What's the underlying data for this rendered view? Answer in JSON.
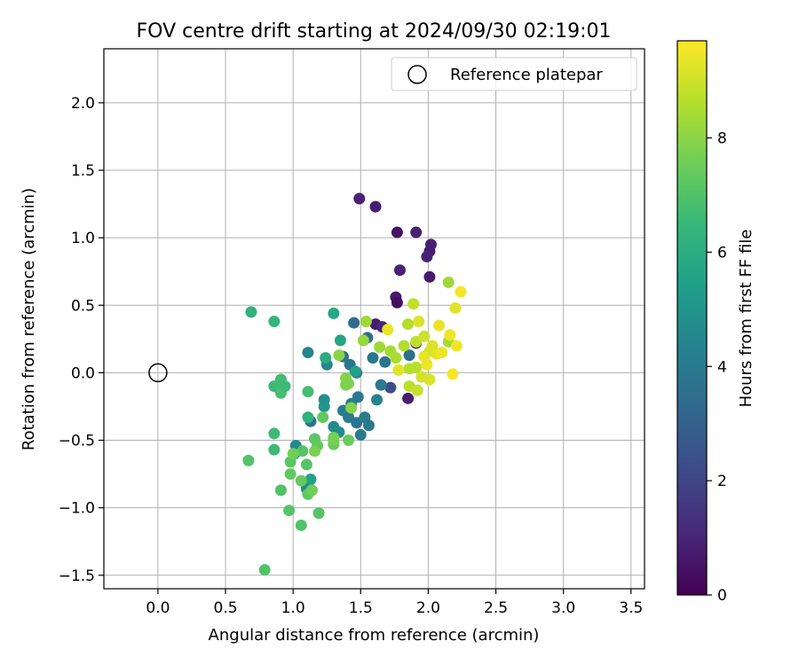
{
  "chart_data": {
    "type": "scatter",
    "title": "FOV centre drift starting at 2024/09/30 02:19:01",
    "xlabel": "Angular distance from reference (arcmin)",
    "ylabel": "Rotation from reference (arcmin)",
    "xlim": [
      -0.4,
      3.6
    ],
    "ylim": [
      -1.6,
      2.4
    ],
    "xticks": [
      0.0,
      0.5,
      1.0,
      1.5,
      2.0,
      2.5,
      3.0,
      3.5
    ],
    "xtick_labels": [
      "0.0",
      "0.5",
      "1.0",
      "1.5",
      "2.0",
      "2.5",
      "3.0",
      "3.5"
    ],
    "yticks": [
      -1.5,
      -1.0,
      -0.5,
      0.0,
      0.5,
      1.0,
      1.5,
      2.0
    ],
    "ytick_labels": [
      "−1.5",
      "−1.0",
      "−0.5",
      "0.0",
      "0.5",
      "1.0",
      "1.5",
      "2.0"
    ],
    "grid": true,
    "legend": {
      "location": "upper right",
      "entries": [
        "Reference platepar"
      ]
    },
    "reference_point": {
      "label": "Reference platepar",
      "x": 0.0,
      "y": 0.0,
      "marker": "open-circle"
    },
    "colorbar": {
      "label": "Hours from first FF file",
      "colormap": "viridis",
      "range": [
        0,
        9.7
      ],
      "ticks": [
        0,
        2,
        4,
        6,
        8
      ],
      "tick_labels": [
        "0",
        "2",
        "4",
        "6",
        "8"
      ]
    },
    "series": [
      {
        "name": "FOV centre",
        "points": [
          {
            "x": 1.49,
            "y": 1.29,
            "h": 0.9
          },
          {
            "x": 1.61,
            "y": 1.23,
            "h": 0.8
          },
          {
            "x": 1.77,
            "y": 1.04,
            "h": 0.5
          },
          {
            "x": 1.91,
            "y": 1.04,
            "h": 0.9
          },
          {
            "x": 2.02,
            "y": 0.95,
            "h": 0.9
          },
          {
            "x": 2.01,
            "y": 0.9,
            "h": 0.8
          },
          {
            "x": 1.99,
            "y": 0.86,
            "h": 0.9
          },
          {
            "x": 1.79,
            "y": 0.76,
            "h": 0.9
          },
          {
            "x": 2.01,
            "y": 0.71,
            "h": 0.7
          },
          {
            "x": 1.76,
            "y": 0.56,
            "h": 0.6
          },
          {
            "x": 1.77,
            "y": 0.52,
            "h": 0.4
          },
          {
            "x": 1.61,
            "y": 0.36,
            "h": 0.8
          },
          {
            "x": 1.66,
            "y": 0.34,
            "h": 1.0
          },
          {
            "x": 1.85,
            "y": -0.19,
            "h": 0.8
          },
          {
            "x": 1.91,
            "y": 0.22,
            "h": 1.2
          },
          {
            "x": 1.72,
            "y": -0.11,
            "h": 2.3
          },
          {
            "x": 1.86,
            "y": 0.13,
            "h": 3.6
          },
          {
            "x": 1.45,
            "y": 0.37,
            "h": 3.4
          },
          {
            "x": 1.55,
            "y": 0.26,
            "h": 3.5
          },
          {
            "x": 1.37,
            "y": 0.12,
            "h": 3.6
          },
          {
            "x": 1.42,
            "y": 0.06,
            "h": 3.7
          },
          {
            "x": 1.47,
            "y": 0.0,
            "h": 3.8
          },
          {
            "x": 1.59,
            "y": 0.11,
            "h": 3.9
          },
          {
            "x": 1.68,
            "y": 0.08,
            "h": 3.7
          },
          {
            "x": 1.65,
            "y": -0.09,
            "h": 4.0
          },
          {
            "x": 1.62,
            "y": -0.2,
            "h": 4.3
          },
          {
            "x": 1.48,
            "y": -0.18,
            "h": 3.9
          },
          {
            "x": 1.43,
            "y": -0.23,
            "h": 4.1
          },
          {
            "x": 1.37,
            "y": -0.28,
            "h": 4.2
          },
          {
            "x": 1.41,
            "y": -0.33,
            "h": 4.0
          },
          {
            "x": 1.47,
            "y": -0.37,
            "h": 3.8
          },
          {
            "x": 1.53,
            "y": -0.33,
            "h": 4.1
          },
          {
            "x": 1.56,
            "y": -0.39,
            "h": 4.0
          },
          {
            "x": 1.5,
            "y": -0.46,
            "h": 4.0
          },
          {
            "x": 1.3,
            "y": -0.4,
            "h": 4.6
          },
          {
            "x": 1.34,
            "y": -0.44,
            "h": 4.7
          },
          {
            "x": 1.25,
            "y": 0.06,
            "h": 4.5
          },
          {
            "x": 1.23,
            "y": -0.2,
            "h": 4.8
          },
          {
            "x": 1.23,
            "y": -0.25,
            "h": 5.0
          },
          {
            "x": 1.11,
            "y": 0.15,
            "h": 4.4
          },
          {
            "x": 1.13,
            "y": -0.36,
            "h": 3.6
          },
          {
            "x": 1.11,
            "y": -0.33,
            "h": 6.3
          },
          {
            "x": 1.02,
            "y": -0.54,
            "h": 4.6
          },
          {
            "x": 1.01,
            "y": -0.6,
            "h": 5.0
          },
          {
            "x": 1.1,
            "y": -0.86,
            "h": 4.8
          },
          {
            "x": 1.13,
            "y": -0.79,
            "h": 5.5
          },
          {
            "x": 1.35,
            "y": 0.24,
            "h": 5.7
          },
          {
            "x": 1.3,
            "y": 0.44,
            "h": 5.8
          },
          {
            "x": 1.24,
            "y": 0.11,
            "h": 6.0
          },
          {
            "x": 1.46,
            "y": 0.01,
            "h": 5.5
          },
          {
            "x": 0.86,
            "y": -0.57,
            "h": 6.6
          },
          {
            "x": 0.86,
            "y": -0.45,
            "h": 6.6
          },
          {
            "x": 0.69,
            "y": 0.45,
            "h": 6.2
          },
          {
            "x": 0.86,
            "y": 0.38,
            "h": 6.4
          },
          {
            "x": 0.86,
            "y": -0.1,
            "h": 6.6
          },
          {
            "x": 0.91,
            "y": -0.05,
            "h": 6.7
          },
          {
            "x": 0.91,
            "y": -0.15,
            "h": 6.8
          },
          {
            "x": 0.94,
            "y": -0.1,
            "h": 6.6
          },
          {
            "x": 0.91,
            "y": -0.87,
            "h": 7.0
          },
          {
            "x": 0.67,
            "y": -0.65,
            "h": 7.0
          },
          {
            "x": 0.79,
            "y": -1.46,
            "h": 7.0
          },
          {
            "x": 0.97,
            "y": -1.02,
            "h": 7.1
          },
          {
            "x": 1.06,
            "y": -1.13,
            "h": 7.0
          },
          {
            "x": 1.19,
            "y": -1.04,
            "h": 7.1
          },
          {
            "x": 1.11,
            "y": -0.14,
            "h": 6.8
          },
          {
            "x": 1.16,
            "y": -0.49,
            "h": 7.2
          },
          {
            "x": 1.18,
            "y": -0.54,
            "h": 7.3
          },
          {
            "x": 1.22,
            "y": -0.33,
            "h": 7.3
          },
          {
            "x": 1.3,
            "y": -0.48,
            "h": 7.6
          },
          {
            "x": 1.3,
            "y": -0.53,
            "h": 7.4
          },
          {
            "x": 1.3,
            "y": -0.5,
            "h": 7.7
          },
          {
            "x": 1.39,
            "y": -0.09,
            "h": 7.8
          },
          {
            "x": 1.39,
            "y": -0.04,
            "h": 7.9
          },
          {
            "x": 1.41,
            "y": -0.08,
            "h": 7.8
          },
          {
            "x": 1.43,
            "y": -0.26,
            "h": 7.9
          },
          {
            "x": 1.41,
            "y": -0.5,
            "h": 7.5
          },
          {
            "x": 1.07,
            "y": -0.58,
            "h": 7.1
          },
          {
            "x": 1.1,
            "y": -0.68,
            "h": 7.1
          },
          {
            "x": 0.98,
            "y": -0.66,
            "h": 7.2
          },
          {
            "x": 0.98,
            "y": -0.75,
            "h": 7.3
          },
          {
            "x": 1.11,
            "y": -0.9,
            "h": 7.3
          },
          {
            "x": 1.14,
            "y": -0.87,
            "h": 7.6
          },
          {
            "x": 1.06,
            "y": -0.8,
            "h": 7.4
          },
          {
            "x": 1.0,
            "y": -0.6,
            "h": 7.6
          },
          {
            "x": 1.16,
            "y": -0.58,
            "h": 7.7
          },
          {
            "x": 1.34,
            "y": 0.13,
            "h": 8.0
          },
          {
            "x": 1.52,
            "y": 0.24,
            "h": 8.2
          },
          {
            "x": 1.54,
            "y": 0.38,
            "h": 8.3
          },
          {
            "x": 1.64,
            "y": 0.19,
            "h": 8.3
          },
          {
            "x": 1.72,
            "y": 0.16,
            "h": 8.4
          },
          {
            "x": 1.76,
            "y": 0.11,
            "h": 8.5
          },
          {
            "x": 1.82,
            "y": 0.2,
            "h": 8.6
          },
          {
            "x": 1.85,
            "y": 0.36,
            "h": 8.6
          },
          {
            "x": 1.89,
            "y": 0.51,
            "h": 8.8
          },
          {
            "x": 1.91,
            "y": 0.23,
            "h": 8.8
          },
          {
            "x": 1.86,
            "y": 0.03,
            "h": 8.6
          },
          {
            "x": 1.91,
            "y": 0.04,
            "h": 8.7
          },
          {
            "x": 1.86,
            "y": -0.1,
            "h": 8.7
          },
          {
            "x": 1.92,
            "y": -0.13,
            "h": 8.9
          },
          {
            "x": 2.15,
            "y": 0.67,
            "h": 8.3
          },
          {
            "x": 2.15,
            "y": 0.23,
            "h": 8.4
          },
          {
            "x": 1.97,
            "y": 0.27,
            "h": 9.0
          },
          {
            "x": 2.01,
            "y": 0.16,
            "h": 9.1
          },
          {
            "x": 2.03,
            "y": 0.2,
            "h": 9.2
          },
          {
            "x": 2.06,
            "y": 0.14,
            "h": 9.3
          },
          {
            "x": 2.08,
            "y": 0.35,
            "h": 9.4
          },
          {
            "x": 2.1,
            "y": 0.15,
            "h": 9.5
          },
          {
            "x": 2.16,
            "y": 0.28,
            "h": 9.5
          },
          {
            "x": 2.2,
            "y": 0.48,
            "h": 9.3
          },
          {
            "x": 2.24,
            "y": 0.6,
            "h": 9.6
          },
          {
            "x": 2.21,
            "y": 0.2,
            "h": 9.5
          },
          {
            "x": 2.18,
            "y": -0.01,
            "h": 9.6
          },
          {
            "x": 1.93,
            "y": 0.38,
            "h": 9.2
          },
          {
            "x": 1.97,
            "y": 0.12,
            "h": 9.4
          },
          {
            "x": 1.99,
            "y": 0.06,
            "h": 9.5
          },
          {
            "x": 2.01,
            "y": -0.05,
            "h": 9.2
          },
          {
            "x": 1.95,
            "y": -0.03,
            "h": 9.1
          },
          {
            "x": 1.78,
            "y": 0.02,
            "h": 9.3
          },
          {
            "x": 1.7,
            "y": 0.32,
            "h": 9.4
          }
        ]
      }
    ]
  }
}
